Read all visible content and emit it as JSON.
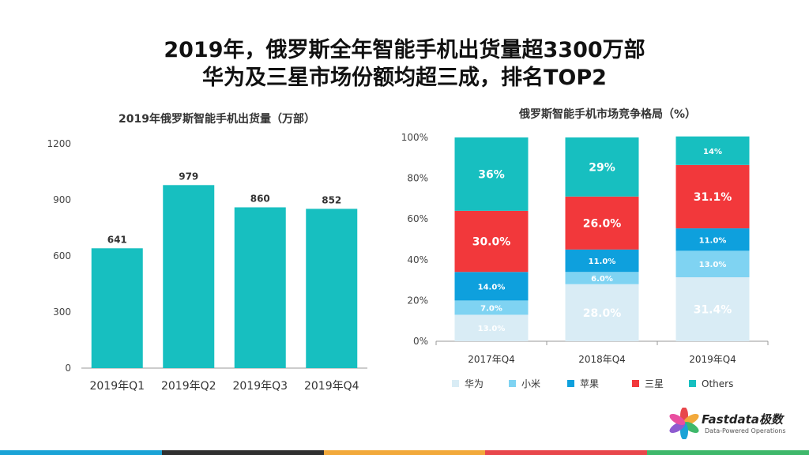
{
  "header": {
    "title_line1": "2019年，俄罗斯全年智能手机出货量超3300万部",
    "title_line2": "华为及三星市场份额均超三成，排名TOP2"
  },
  "chart_data": [
    {
      "type": "bar",
      "title": "2019年俄罗斯智能手机出货量（万部）",
      "categories": [
        "2019年Q1",
        "2019年Q2",
        "2019年Q3",
        "2019年Q4"
      ],
      "values": [
        641,
        979,
        860,
        852
      ],
      "data_labels": [
        "641",
        "979",
        "860",
        "852"
      ],
      "ylim": [
        0,
        1200
      ],
      "yticks": [
        "0",
        "300",
        "600",
        "900",
        "1200"
      ],
      "color": "#17bfc0",
      "grid": false
    },
    {
      "type": "bar",
      "stacked": true,
      "title": "俄罗斯智能手机市场竞争格局（%）",
      "categories": [
        "2017年Q4",
        "2018年Q4",
        "2019年Q4"
      ],
      "yticks": [
        "0%",
        "20%",
        "40%",
        "60%",
        "80%",
        "100%"
      ],
      "ylim": [
        0,
        100
      ],
      "legend_position": "bottom",
      "series": [
        {
          "name": "华为",
          "color": "#d9ecf5",
          "values": [
            13.0,
            28.0,
            31.4
          ],
          "labels": [
            "13.0%",
            "28.0%",
            "31.4%"
          ],
          "label_color": "#ffffff"
        },
        {
          "name": "小米",
          "color": "#7fd3f2",
          "values": [
            7.0,
            6.0,
            13.0
          ],
          "labels": [
            "7.0%",
            "6.0%",
            "13.0%"
          ],
          "label_color": "#ffffff"
        },
        {
          "name": "苹果",
          "color": "#0ea0dd",
          "values": [
            14.0,
            11.0,
            11.0
          ],
          "labels": [
            "14.0%",
            "11.0%",
            "11.0%"
          ],
          "label_color": "#ffffff"
        },
        {
          "name": "三星",
          "color": "#f2383b",
          "values": [
            30.0,
            26.0,
            31.1
          ],
          "labels": [
            "30.0%",
            "26.0%",
            "31.1%"
          ],
          "label_color": "#ffffff"
        },
        {
          "name": "Others",
          "color": "#17bfc0",
          "values": [
            36.0,
            29.0,
            14.0
          ],
          "labels": [
            "36%",
            "29%",
            "14%"
          ],
          "label_color": "#ffffff"
        }
      ]
    }
  ],
  "brand": {
    "name": "Fastdata极数",
    "tagline": "Data-Powered Operations"
  },
  "footer_colors": [
    "#1aa3d6",
    "#2f2f2f",
    "#f2a93b",
    "#e8474b",
    "#3fb86b"
  ]
}
